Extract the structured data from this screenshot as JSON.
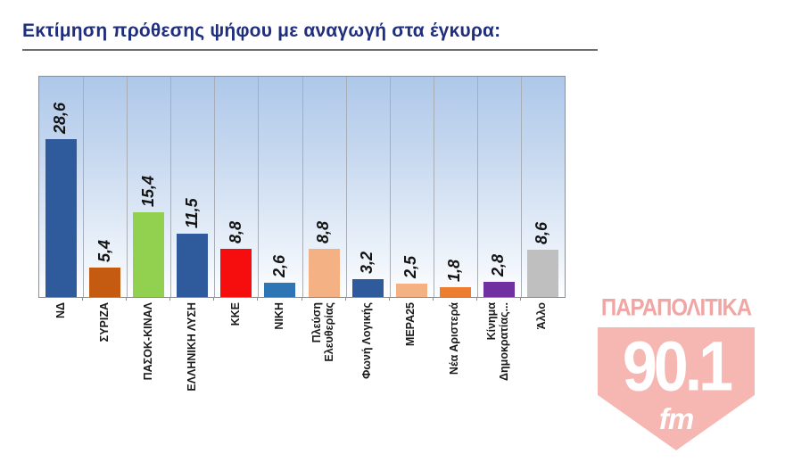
{
  "header": {
    "title": "Εκτίμηση πρόθεσης ψήφου με αναγωγή στα έγκυρα:"
  },
  "chart_data": {
    "type": "bar",
    "title": "Εκτίμηση πρόθεσης ψήφου με αναγωγή στα έγκυρα",
    "xlabel": "",
    "ylabel": "",
    "ylim": [
      0,
      40
    ],
    "grid": "vertical category separators only",
    "legend": "none",
    "plot_background": "vertical gradient light blue to white",
    "categories": [
      "ΝΔ",
      "ΣΥΡΙΖΑ",
      "ΠΑΣΟΚ-ΚΙΝΑΛ",
      "ΕΛΛΗΝΙΚΗ ΛΥΣΗ",
      "ΚΚΕ",
      "ΝΙΚΗ",
      "Πλεύση\nΕλευθερίας",
      "Φωνή Λογικής",
      "ΜΕΡΑ25",
      "Νέα Αριστερά",
      "Κίνημα\nΔημοκρατίας...",
      "Άλλο"
    ],
    "values": [
      28.6,
      5.4,
      15.4,
      11.5,
      8.8,
      2.6,
      8.8,
      3.2,
      2.5,
      1.8,
      2.8,
      8.6
    ],
    "value_labels": [
      "28,6",
      "5,4",
      "15,4",
      "11,5",
      "8,8",
      "2,6",
      "8,8",
      "3,2",
      "2,5",
      "1,8",
      "2,8",
      "8,6"
    ],
    "colors": [
      "#2F5B9D",
      "#C55A11",
      "#92D050",
      "#2F5B9D",
      "#F60D0D",
      "#2E75B6",
      "#F4B183",
      "#2F5B9D",
      "#F4B183",
      "#ED7D31",
      "#7030A0",
      "#BFBFBF"
    ]
  },
  "logo": {
    "station": "ΠΑΡΑΠΟΛΙΤΙΚΑ",
    "frequency": "90.1",
    "band": "fm"
  },
  "colors": {
    "title": "#1F2E7D",
    "underline": "#6F6F6F",
    "logo_pink": "#F6B6B1",
    "logo_pink_dark": "#F0A6A4"
  }
}
